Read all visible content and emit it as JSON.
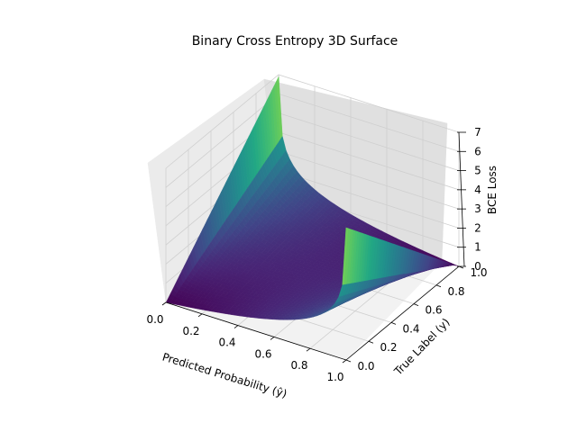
{
  "chart_data": {
    "type": "surface3d",
    "title": "Binary Cross Entropy 3D Surface",
    "xlabel": "Predicted Probability (ŷ)",
    "ylabel": "True Label (y)",
    "zlabel": "BCE Loss",
    "xlim": [
      0.0,
      1.0
    ],
    "ylim": [
      0.0,
      1.0
    ],
    "zlim": [
      0,
      7
    ],
    "x_ticks": [
      "0.0",
      "0.2",
      "0.4",
      "0.6",
      "0.8",
      "1.0"
    ],
    "y_ticks": [
      "0.0",
      "0.2",
      "0.4",
      "0.6",
      "0.8",
      "1.0"
    ],
    "z_ticks": [
      "0",
      "1",
      "2",
      "3",
      "4",
      "5",
      "6",
      "7"
    ],
    "function": "-(y*log(p) + (1-y)*log(1-p))",
    "p_range": [
      0.001,
      0.999
    ],
    "colormap": "viridis",
    "grid": true
  }
}
